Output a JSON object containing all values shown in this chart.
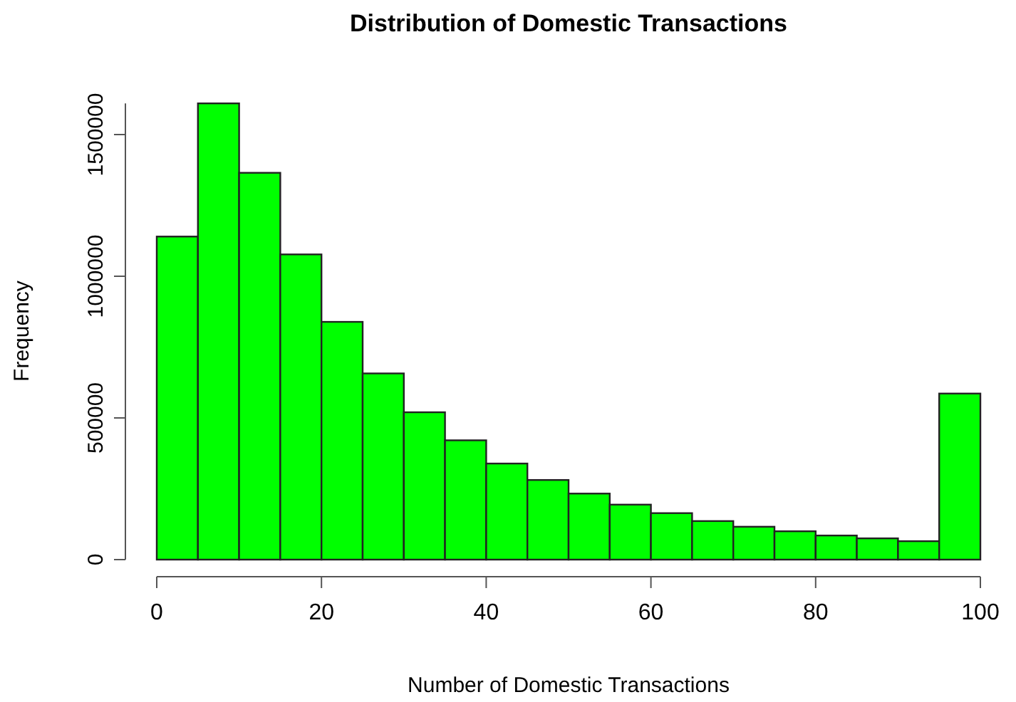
{
  "chart_data": {
    "type": "histogram",
    "title": "Distribution of Domestic Transactions",
    "xlabel": "Number of Domestic Transactions",
    "ylabel": "Frequency",
    "bins": [
      0,
      5,
      10,
      15,
      20,
      25,
      30,
      35,
      40,
      45,
      50,
      55,
      60,
      65,
      70,
      75,
      80,
      85,
      90,
      95,
      100
    ],
    "values": [
      1140000,
      1610000,
      1365000,
      1077000,
      839000,
      657000,
      520000,
      421000,
      339000,
      281000,
      233000,
      194000,
      164000,
      136000,
      116000,
      100000,
      85000,
      75000,
      65000,
      586000
    ],
    "color": "#00ff00",
    "xlim": [
      0,
      100
    ],
    "xticks": [
      0,
      20,
      40,
      60,
      80,
      100
    ],
    "ylim": [
      0,
      1610000
    ],
    "yticks": [
      0,
      500000,
      1000000,
      1500000
    ],
    "grid": false
  }
}
